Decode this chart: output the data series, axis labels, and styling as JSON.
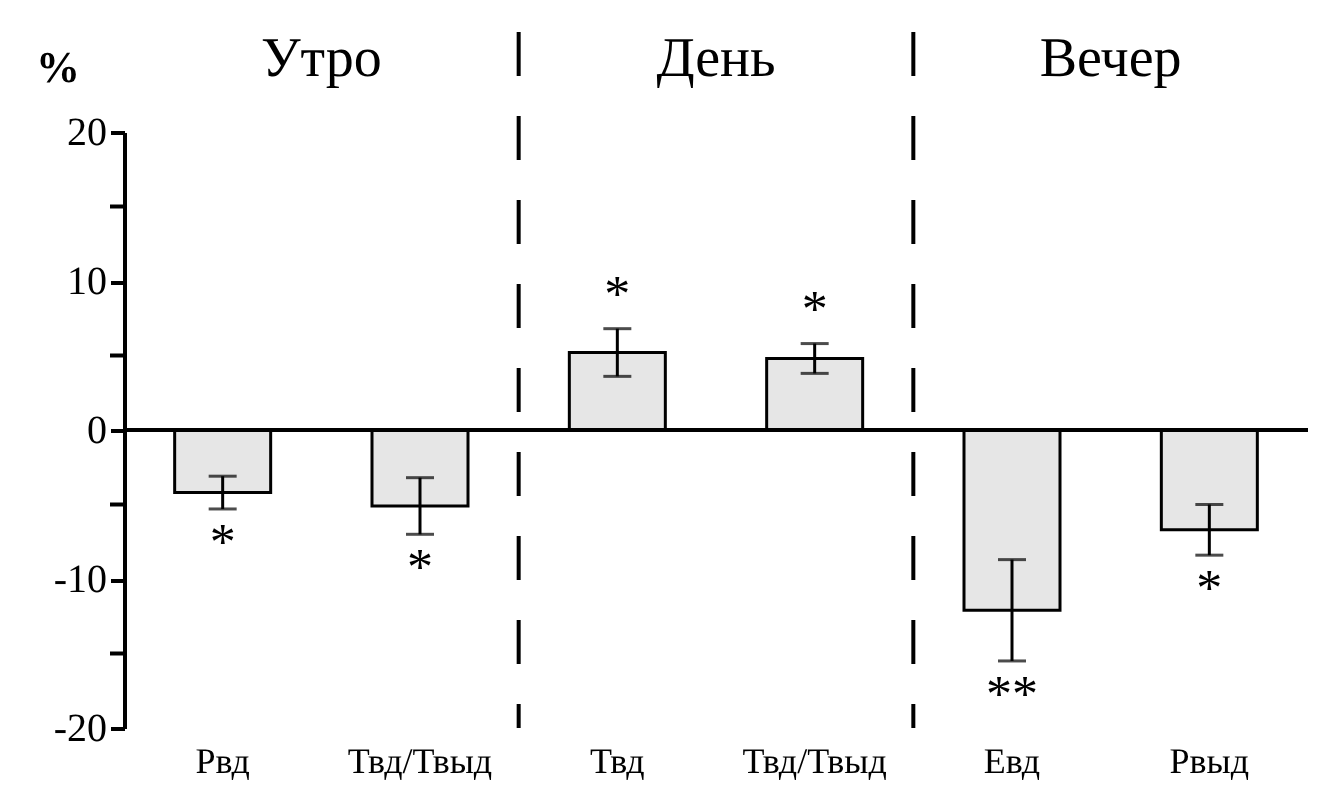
{
  "chart_data": {
    "type": "bar",
    "ylabel": "%",
    "categories": [
      "Рвд",
      "Твд/Твыд",
      "Твд",
      "Твд/Твыд",
      "Евд",
      "Рвыд"
    ],
    "values": [
      -4.2,
      -5.1,
      5.2,
      4.8,
      -12.1,
      -6.7
    ],
    "errors": [
      1.1,
      1.9,
      1.6,
      1.0,
      3.4,
      1.7
    ],
    "value_labels": [
      "*",
      "*",
      "*",
      "*",
      "**",
      "*"
    ],
    "color": "#e6e6e6",
    "ylim": [
      -20,
      20
    ],
    "yticks": [
      -20,
      {
        "value": -15,
        "label": null
      },
      -10,
      {
        "value": -5,
        "label": null
      },
      0,
      {
        "value": 5,
        "label": null
      },
      10,
      {
        "value": 15,
        "label": null
      },
      20
    ],
    "annotations": [
      "Утро",
      "День",
      "Вечер"
    ],
    "grid": false
  }
}
